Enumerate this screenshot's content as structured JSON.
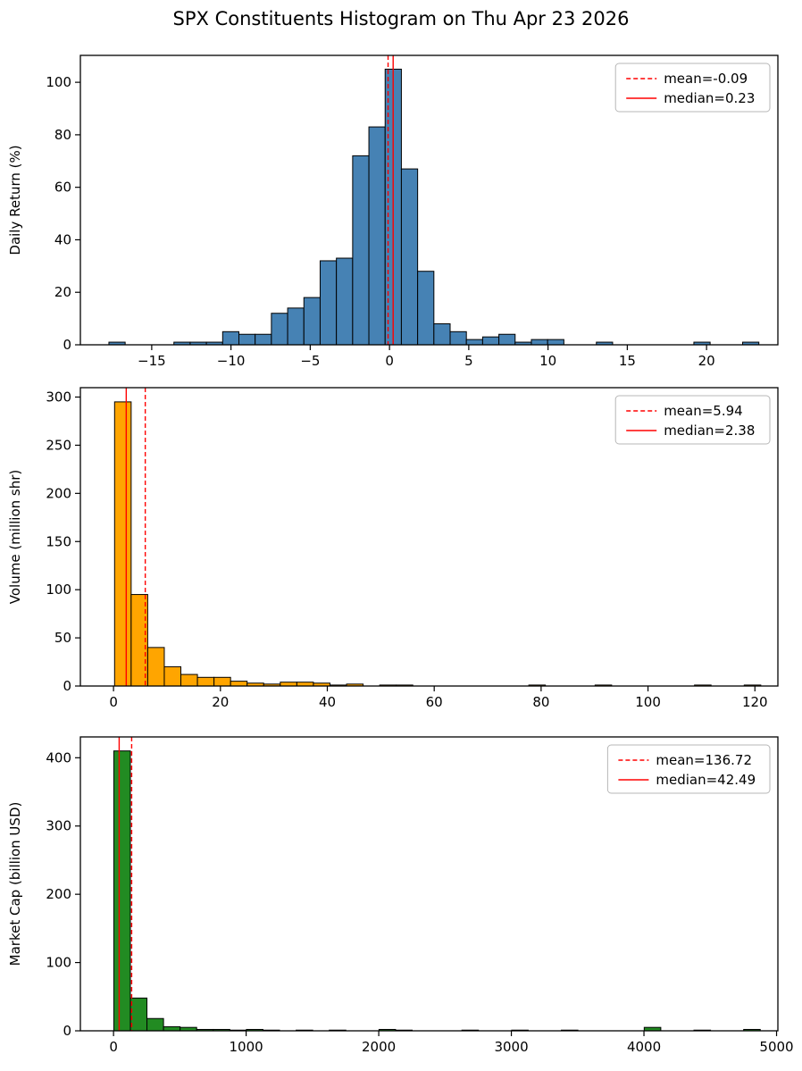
{
  "title": "SPX Constituents Histogram on Thu Apr 23 2026",
  "chart_data": [
    {
      "type": "bar",
      "name": "daily-return-histogram",
      "ylabel": "Daily Return (%)",
      "xlabel": "",
      "bar_color": "#4682b4",
      "line_color": "#ff0000",
      "grid": false,
      "legend_position": "upper right",
      "mean": -0.09,
      "median": 0.23,
      "legend": [
        {
          "style": "dashed",
          "label": "mean=-0.09"
        },
        {
          "style": "solid",
          "label": "median=0.23"
        }
      ],
      "bin_start": -17.7,
      "bin_width": 1.025,
      "counts": [
        1,
        0,
        0,
        0,
        1,
        1,
        1,
        5,
        4,
        4,
        12,
        14,
        18,
        32,
        33,
        72,
        83,
        105,
        67,
        28,
        8,
        5,
        2,
        3,
        4,
        1,
        2,
        2,
        0,
        0,
        1,
        0,
        0,
        0,
        0,
        0,
        1,
        0,
        0,
        1
      ],
      "xlim": [
        -19.5,
        24.5
      ],
      "ylim": [
        0,
        110.25
      ],
      "xticks": [
        -15,
        -10,
        -5,
        0,
        5,
        10,
        15,
        20
      ],
      "yticks": [
        0,
        20,
        40,
        60,
        80,
        100
      ]
    },
    {
      "type": "bar",
      "name": "volume-histogram",
      "ylabel": "Volume (million shr)",
      "xlabel": "",
      "bar_color": "#ffa500",
      "line_color": "#ff0000",
      "grid": false,
      "legend_position": "upper right",
      "mean": 5.94,
      "median": 2.38,
      "legend": [
        {
          "style": "dashed",
          "label": "mean=5.94"
        },
        {
          "style": "solid",
          "label": "median=2.38"
        }
      ],
      "bin_start": 0.2,
      "bin_width": 3.1,
      "counts": [
        295,
        95,
        40,
        20,
        12,
        9,
        9,
        5,
        3,
        2,
        4,
        4,
        3,
        1,
        2,
        0,
        1,
        1,
        0,
        0,
        0,
        0,
        0,
        0,
        0,
        1,
        0,
        0,
        0,
        1,
        0,
        0,
        0,
        0,
        0,
        1,
        0,
        0,
        1,
        0
      ],
      "xlim": [
        -6.2,
        124.3
      ],
      "ylim": [
        0,
        309.75
      ],
      "xticks": [
        0,
        20,
        40,
        60,
        80,
        100,
        120
      ],
      "yticks": [
        0,
        50,
        100,
        150,
        200,
        250,
        300
      ]
    },
    {
      "type": "bar",
      "name": "market-cap-histogram",
      "ylabel": "Market Cap (billion USD)",
      "xlabel": "",
      "bar_color": "#228b22",
      "line_color": "#ff0000",
      "grid": false,
      "legend_position": "upper right",
      "mean": 136.72,
      "median": 42.49,
      "legend": [
        {
          "style": "dashed",
          "label": "mean=136.72"
        },
        {
          "style": "solid",
          "label": "median=42.49"
        }
      ],
      "bin_start": 2,
      "bin_width": 125,
      "counts": [
        410,
        48,
        18,
        6,
        5,
        2,
        2,
        1,
        2,
        1,
        0,
        1,
        0,
        1,
        0,
        0,
        2,
        1,
        0,
        0,
        0,
        1,
        0,
        0,
        1,
        0,
        0,
        1,
        0,
        0,
        0,
        0,
        5,
        0,
        0,
        1,
        0,
        0,
        2,
        0
      ],
      "xlim": [
        -250,
        5010
      ],
      "ylim": [
        0,
        430.5
      ],
      "xticks": [
        0,
        1000,
        2000,
        3000,
        4000,
        5000
      ],
      "yticks": [
        0,
        100,
        200,
        300,
        400
      ]
    }
  ]
}
